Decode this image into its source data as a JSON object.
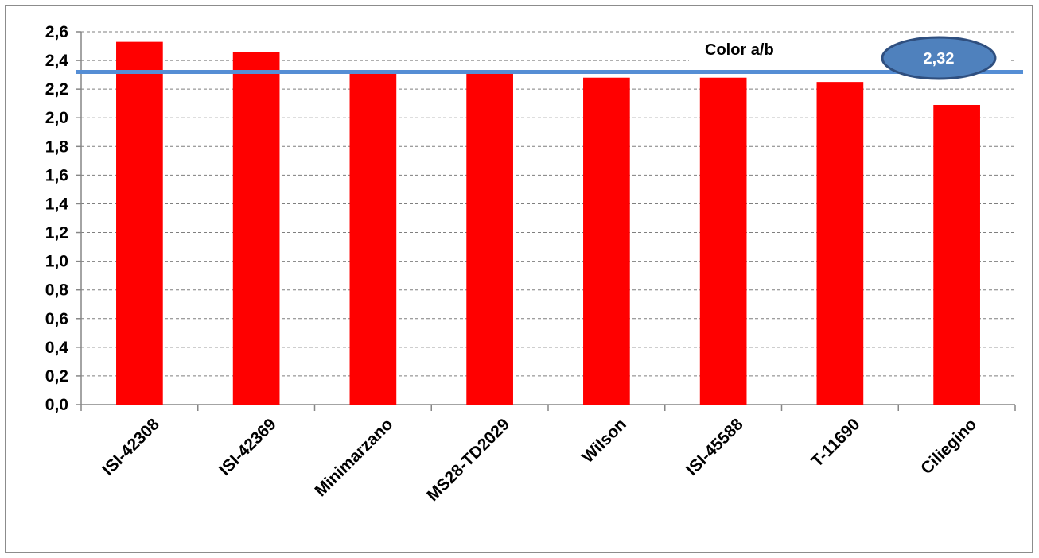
{
  "chart_data": {
    "type": "bar",
    "categories": [
      "ISI-42308",
      "ISI-42369",
      "Minimarzano",
      "MS28-TD2029",
      "Wilson",
      "ISI-45588",
      "T-11690",
      "Ciliegino"
    ],
    "values": [
      2.53,
      2.46,
      2.31,
      2.31,
      2.28,
      2.28,
      2.25,
      2.09
    ],
    "ylim": [
      0,
      2.6
    ],
    "ytick_step": 0.2,
    "ytick_labels": [
      "0,0",
      "0,2",
      "0,4",
      "0,6",
      "0,8",
      "1,0",
      "1,2",
      "1,4",
      "1,6",
      "1,8",
      "2,0",
      "2,2",
      "2,4",
      "2,6"
    ],
    "grid": true,
    "bar_color": "#ff0000",
    "reference_line": {
      "value": 2.32,
      "label": "Color a/b",
      "badge_text": "2,32",
      "color": "#558ed5",
      "badge_color": "#4f81bd"
    }
  }
}
